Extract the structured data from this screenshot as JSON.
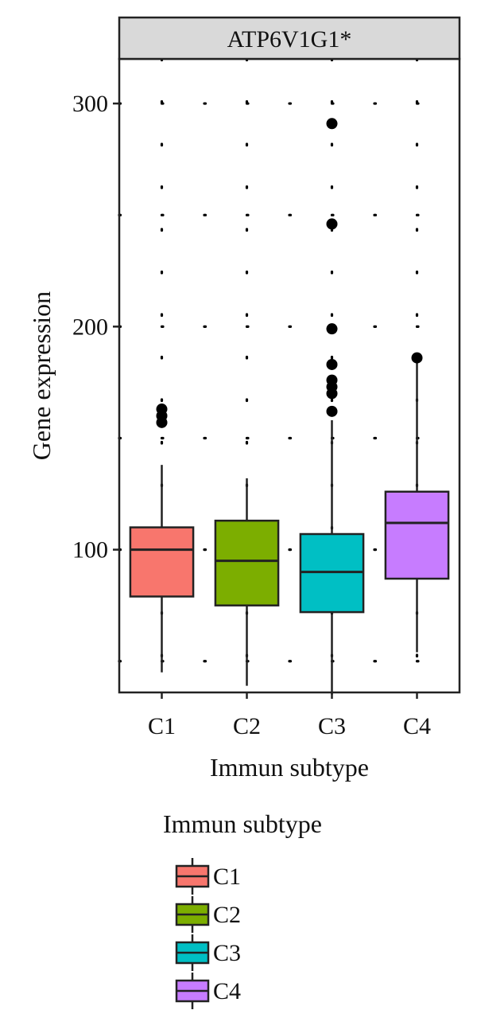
{
  "chart_data": {
    "type": "box",
    "facet_title": "ATP6V1G1*",
    "xlabel": "Immun subtype",
    "ylabel": "Gene expression",
    "ylim": [
      36,
      320
    ],
    "yticks": [
      100,
      200,
      300
    ],
    "grid": "dotted",
    "categories": [
      "C1",
      "C2",
      "C3",
      "C4"
    ],
    "colors": [
      "#f8766d",
      "#7cae00",
      "#00bfc4",
      "#c77cff"
    ],
    "boxes": [
      {
        "name": "C1",
        "whisker_low": 45,
        "q1": 79,
        "median": 100,
        "q3": 110,
        "whisker_high": 138,
        "outliers": [
          157,
          160,
          163
        ]
      },
      {
        "name": "C2",
        "whisker_low": 39,
        "q1": 75,
        "median": 95,
        "q3": 113,
        "whisker_high": 132,
        "outliers": []
      },
      {
        "name": "C3",
        "whisker_low": 35,
        "q1": 72,
        "median": 90,
        "q3": 107,
        "whisker_high": 158,
        "outliers": [
          162,
          170,
          173,
          176,
          183,
          199,
          246,
          291
        ]
      },
      {
        "name": "C4",
        "whisker_low": 54,
        "q1": 87,
        "median": 112,
        "q3": 126,
        "whisker_high": 184,
        "outliers": [
          186
        ]
      }
    ],
    "legend": {
      "title": "Immun subtype",
      "position": "bottom",
      "items": [
        "C1",
        "C2",
        "C3",
        "C4"
      ]
    }
  }
}
